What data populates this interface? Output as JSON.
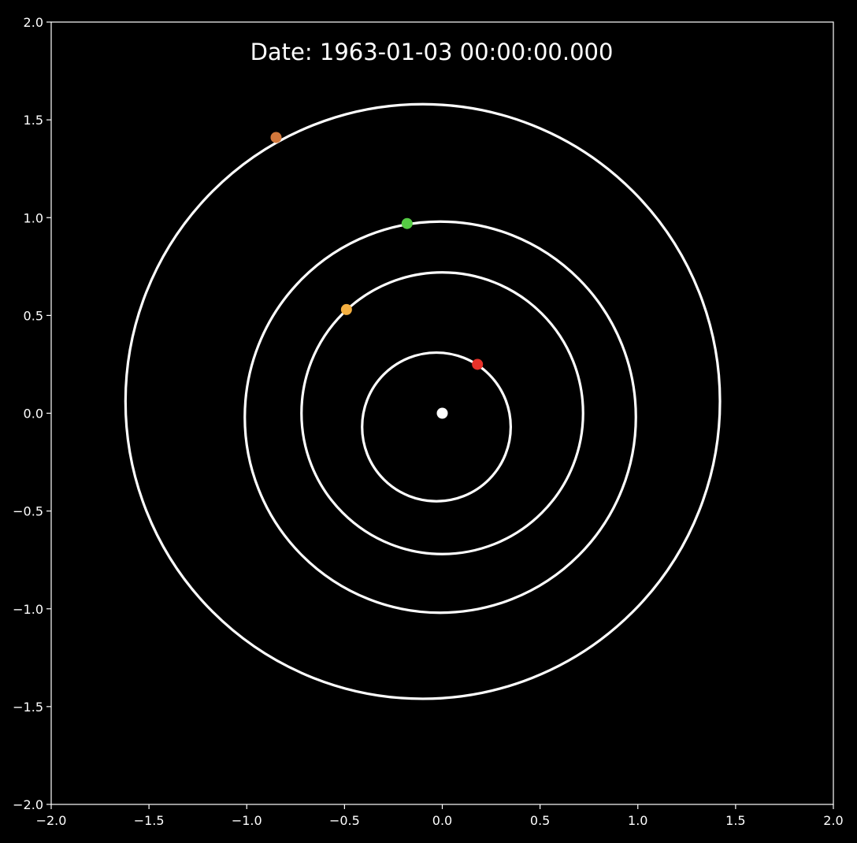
{
  "chart_data": {
    "type": "scatter",
    "title": "Date: 1963-01-03 00:00:00.000",
    "xlabel": "",
    "ylabel": "",
    "xlim": [
      -2.0,
      2.0
    ],
    "ylim": [
      -2.0,
      2.0
    ],
    "grid": false,
    "background": "#000000",
    "foreground": "#ffffff",
    "x_ticks": [
      {
        "value": -2.0,
        "label": "−2.0"
      },
      {
        "value": -1.5,
        "label": "−1.5"
      },
      {
        "value": -1.0,
        "label": "−1.0"
      },
      {
        "value": -0.5,
        "label": "−0.5"
      },
      {
        "value": 0.0,
        "label": "0.0"
      },
      {
        "value": 0.5,
        "label": "0.5"
      },
      {
        "value": 1.0,
        "label": "1.0"
      },
      {
        "value": 1.5,
        "label": "1.5"
      },
      {
        "value": 2.0,
        "label": "2.0"
      }
    ],
    "y_ticks": [
      {
        "value": 2.0,
        "label": "2.0"
      },
      {
        "value": 1.5,
        "label": "1.5"
      },
      {
        "value": 1.0,
        "label": "1.0"
      },
      {
        "value": 0.5,
        "label": "0.5"
      },
      {
        "value": 0.0,
        "label": "0.0"
      },
      {
        "value": -0.5,
        "label": "−0.5"
      },
      {
        "value": -1.0,
        "label": "−1.0"
      },
      {
        "value": -1.5,
        "label": "−1.5"
      },
      {
        "value": -2.0,
        "label": "−2.0"
      }
    ],
    "orbits": [
      {
        "center": [
          -0.03,
          -0.07
        ],
        "rx": 0.38,
        "ry": 0.38,
        "color": "#ffffff"
      },
      {
        "center": [
          0.0,
          0.0
        ],
        "rx": 0.72,
        "ry": 0.72,
        "color": "#ffffff"
      },
      {
        "center": [
          -0.01,
          -0.02
        ],
        "rx": 1.0,
        "ry": 1.0,
        "color": "#ffffff"
      },
      {
        "center": [
          -0.1,
          0.06
        ],
        "rx": 1.52,
        "ry": 1.52,
        "color": "#ffffff"
      }
    ],
    "points": [
      {
        "x": 0.0,
        "y": 0.0,
        "color": "#ffffff"
      },
      {
        "x": 0.18,
        "y": 0.25,
        "color": "#e8322a"
      },
      {
        "x": -0.49,
        "y": 0.53,
        "color": "#f5b041"
      },
      {
        "x": -0.18,
        "y": 0.97,
        "color": "#55cc44"
      },
      {
        "x": -0.85,
        "y": 1.41,
        "color": "#d2783c"
      }
    ]
  }
}
